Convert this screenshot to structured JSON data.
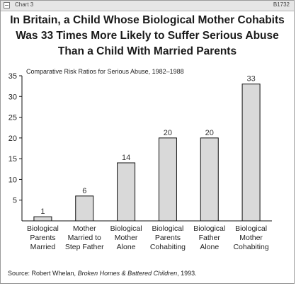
{
  "window": {
    "label": "Chart 3",
    "code": "B1732"
  },
  "title_lines": [
    "In Britain, a Child Whose Biological Mother Cohabits",
    "Was 33 Times More Likely to Suffer Serious Abuse",
    "Than a Child With Married Parents"
  ],
  "source": {
    "prefix": "Source:",
    "author": " Robert Whelan, ",
    "work": "Broken Homes & Battered Children",
    "suffix": ", 1993."
  },
  "chart_data": {
    "type": "bar",
    "title": "In Britain, a Child Whose Biological Mother Cohabits Was 33 Times More Likely to Suffer Serious Abuse Than a Child With Married Parents",
    "subtitle": "Comparative Risk Ratios for Serious Abuse, 1982–1988",
    "xlabel": "",
    "ylabel": "",
    "ylim": [
      0,
      35
    ],
    "yticks": [
      5,
      10,
      15,
      20,
      25,
      30,
      35
    ],
    "categories": [
      [
        "Biological",
        "Parents",
        "Married"
      ],
      [
        "Mother",
        "Married to",
        "Step Father"
      ],
      [
        "Biological",
        "Mother",
        "Alone"
      ],
      [
        "Biological",
        "Parents",
        "Cohabiting"
      ],
      [
        "Biological",
        "Father",
        "Alone"
      ],
      [
        "Biological",
        "Mother",
        "Cohabiting"
      ]
    ],
    "values": [
      1,
      6,
      14,
      20,
      20,
      33
    ],
    "data_labels": [
      "1",
      "6",
      "14",
      "20",
      "20",
      "33"
    ],
    "bar_color": "#d9d9d9",
    "bar_edge_color": "#111111",
    "grid": false,
    "legend": "none"
  }
}
